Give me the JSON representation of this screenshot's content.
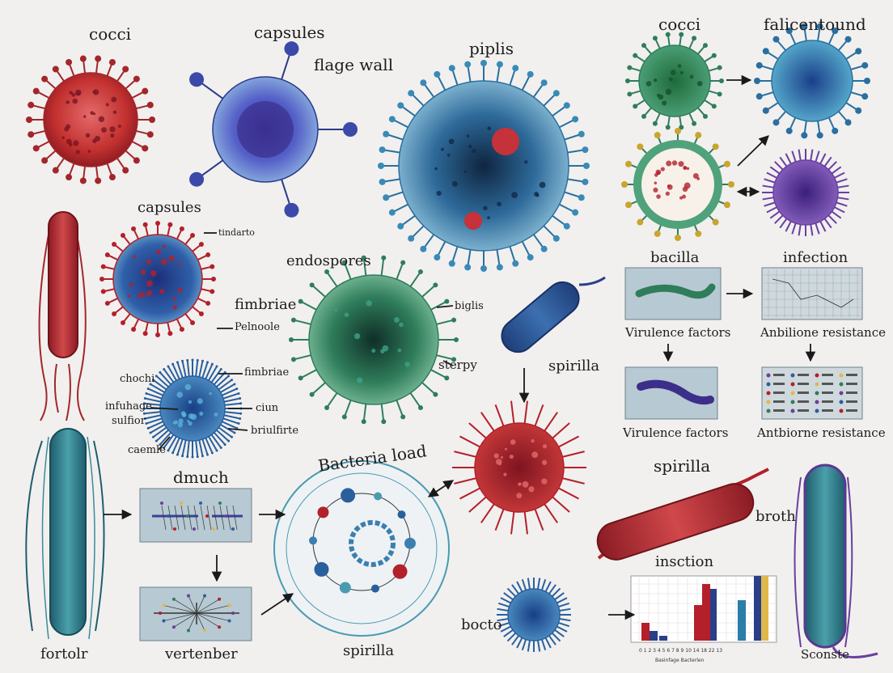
{
  "labels": {
    "cocci_top_left": "cocci",
    "capsules_top": "capsules",
    "flage_wall": "flage wall",
    "piplis": "piplis",
    "cocci_top_right": "cocci",
    "falicentound": "falicentound",
    "capsules_mid": "capsules",
    "tindarto": "tindarto",
    "fimbriae_mid": "fimbriae",
    "pelnoole": "Pelnoole",
    "endospores": "endospores",
    "biglis": "biglis",
    "sterpy": "sterpy",
    "spirilla_mid": "spirilla",
    "bacilla": "bacilla",
    "infection_top": "infection",
    "virulence_factors_1": "Virulence factors",
    "antibiotic_resistance_1": "Anbilione resistance",
    "virulence_factors_2": "Virulence factors",
    "antibiotic_resistance_2": "Antbiorne resistance",
    "chochi": "chochi",
    "fimbriae_small": "fimbriae",
    "infuhage": "infuhage",
    "sulfior": "sulfior",
    "ciun": "ciun",
    "briulfirte": "briulfirte",
    "caemle": "caemle",
    "dmuch": "dmuch",
    "bacteria_load": "Bacteria load",
    "spirilla_right": "spirilla",
    "broth": "broth",
    "insction": "insction",
    "bocto": "bocto",
    "fortolr": "fortolr",
    "vertenber": "vertenber",
    "spirilla_bottom": "spirilla",
    "sconste": "Sconste"
  },
  "colors": {
    "background": "#f1f0ee",
    "red": "#b3202a",
    "blue": "#2a5f9e",
    "green": "#2f7d5b",
    "purple": "#6a3fa0",
    "teal": "#2a7f8e",
    "panel": "#b7c9d2"
  }
}
